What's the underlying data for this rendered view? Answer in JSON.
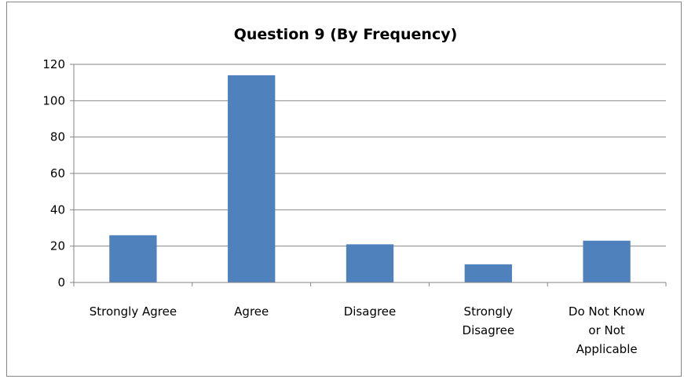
{
  "chart_data": {
    "type": "bar",
    "title": "Question 9 (By Frequency)",
    "xlabel": "",
    "ylabel": "",
    "categories": [
      "Strongly Agree",
      "Agree",
      "Disagree",
      "Strongly Disagree",
      "Do Not Know or Not Applicable"
    ],
    "category_lines": [
      [
        "Strongly Agree"
      ],
      [
        "Agree"
      ],
      [
        "Disagree"
      ],
      [
        "Strongly",
        "Disagree"
      ],
      [
        "Do Not Know",
        "or Not",
        "Applicable"
      ]
    ],
    "values": [
      26,
      114,
      21,
      10,
      23
    ],
    "ylim": [
      0,
      120
    ],
    "yticks": [
      0,
      20,
      40,
      60,
      80,
      100,
      120
    ],
    "grid": true,
    "legend": "none",
    "bar_color": "#4f81bd"
  }
}
